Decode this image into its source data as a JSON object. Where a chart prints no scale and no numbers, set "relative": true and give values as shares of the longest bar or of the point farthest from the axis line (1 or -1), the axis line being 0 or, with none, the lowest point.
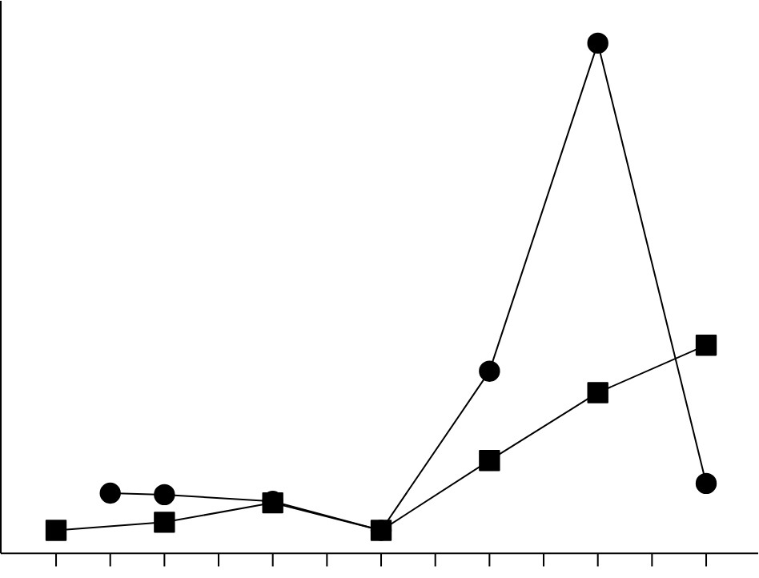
{
  "chart_data": {
    "type": "line",
    "relative": true,
    "categories": [
      null,
      null,
      null,
      null,
      null,
      null,
      null,
      null,
      null,
      null,
      null,
      null,
      null
    ],
    "series": [
      {
        "color": "#000000",
        "marker": "circle",
        "values": [
          null,
          0.118,
          0.115,
          null,
          0.102,
          null,
          0.045,
          null,
          0.357,
          null,
          1,
          null,
          0.137
        ]
      },
      {
        "color": "#000000",
        "marker": "square",
        "values": [
          0.045,
          null,
          0.061,
          null,
          0.099,
          null,
          0.045,
          null,
          0.182,
          null,
          0.315,
          null,
          0.408
        ]
      }
    ]
  }
}
